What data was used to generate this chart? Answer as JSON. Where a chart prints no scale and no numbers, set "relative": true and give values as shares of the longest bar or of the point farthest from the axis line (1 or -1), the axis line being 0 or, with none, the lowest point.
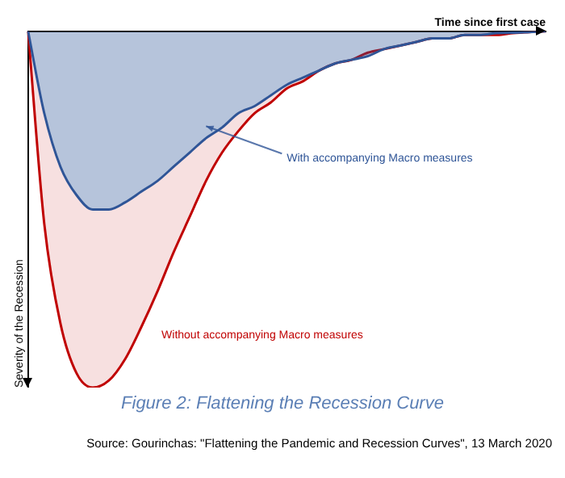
{
  "chart_data": {
    "type": "area",
    "relative": true,
    "title": "Figure 2: Flattening the Recession Curve",
    "xlabel": "Time since first case",
    "ylabel": "Severity of the Recession",
    "annotations": [
      "Source: Gourinchas: \"Flattening the Pandemic and Recession Curves\", 13 March 2020"
    ],
    "grid": false,
    "legend": false,
    "categories": [
      null,
      null,
      null,
      null,
      null,
      null,
      null,
      null,
      null,
      null,
      null,
      null,
      null,
      null,
      null,
      null,
      null,
      null,
      null,
      null,
      null,
      null,
      null,
      null,
      null,
      null,
      null,
      null,
      null,
      null,
      null,
      null,
      null
    ],
    "series": [
      {
        "name": "With accompanying Macro measures",
        "color": "#2f5597",
        "values": [
          0,
          -0.23,
          -0.38,
          -0.46,
          -0.5,
          -0.5,
          -0.48,
          -0.45,
          -0.42,
          -0.38,
          -0.34,
          -0.3,
          -0.27,
          -0.23,
          -0.21,
          -0.18,
          -0.15,
          -0.13,
          -0.11,
          -0.09,
          -0.08,
          -0.07,
          -0.05,
          -0.04,
          -0.03,
          -0.02,
          -0.02,
          -0.01,
          -0.01,
          -0.005,
          -0.004,
          -0.002,
          0
        ]
      },
      {
        "name": "Without accompanying Macro measures",
        "color": "#c00000",
        "values": [
          0,
          -0.54,
          -0.82,
          -0.96,
          -1,
          -0.98,
          -0.92,
          -0.83,
          -0.73,
          -0.62,
          -0.52,
          -0.42,
          -0.34,
          -0.28,
          -0.23,
          -0.2,
          -0.16,
          -0.14,
          -0.11,
          -0.09,
          -0.08,
          -0.06,
          -0.05,
          -0.04,
          -0.03,
          -0.02,
          -0.02,
          -0.01,
          -0.01,
          -0.01,
          -0.005,
          -0.002,
          0
        ]
      }
    ]
  }
}
